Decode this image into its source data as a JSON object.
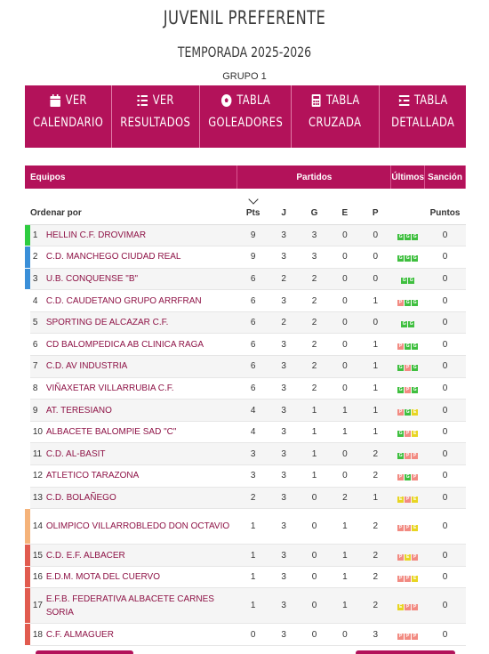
{
  "header": {
    "title": "JUVENIL PREFERENTE",
    "season": "TEMPORADA 2025-2026",
    "group": "GRUPO 1"
  },
  "nav": [
    {
      "icon": "calendar-icon",
      "line1": "VER",
      "line2": "CALENDARIO"
    },
    {
      "icon": "list-icon",
      "line1": "VER",
      "line2": "RESULTADOS"
    },
    {
      "icon": "soccer-ball-icon",
      "line1": "TABLA",
      "line2": "GOLEADORES"
    },
    {
      "icon": "calculator-icon",
      "line1": "TABLA",
      "line2": "CRUZADA"
    },
    {
      "icon": "list-detail-icon",
      "line1": "TABLA",
      "line2": "DETALLADA"
    }
  ],
  "table": {
    "head1": {
      "teams": "Equipos",
      "matches": "Partidos",
      "last": "Últimos",
      "sanction": "Sanción"
    },
    "head2": {
      "order": "Ordenar por",
      "pts": "Pts",
      "j": "J",
      "g": "G",
      "e": "E",
      "p": "P",
      "points": "Puntos"
    },
    "colors": {
      "promotion": "#2ecc40",
      "playoff": "#3a8fd8",
      "warning": "#f5b37a",
      "relegation": "#e15b4f",
      "accent": "#b3125a"
    },
    "rows": [
      {
        "pos": "1",
        "team": "HELLIN C.F. DROVIMAR",
        "pts": "9",
        "j": "3",
        "g": "3",
        "e": "0",
        "p": "0",
        "last": [
          "G",
          "G",
          "G"
        ],
        "sanction": "0",
        "zone": "promotion"
      },
      {
        "pos": "2",
        "team": "C.D. MANCHEGO CIUDAD REAL",
        "pts": "9",
        "j": "3",
        "g": "3",
        "e": "0",
        "p": "0",
        "last": [
          "G",
          "G",
          "G"
        ],
        "sanction": "0",
        "zone": "playoff"
      },
      {
        "pos": "3",
        "team": "U.B. CONQUENSE \"B\"",
        "pts": "6",
        "j": "2",
        "g": "2",
        "e": "0",
        "p": "0",
        "last": [
          "G",
          "G"
        ],
        "sanction": "0",
        "zone": "playoff"
      },
      {
        "pos": "4",
        "team": "C.D. CAUDETANO GRUPO ARRFRAN",
        "pts": "6",
        "j": "3",
        "g": "2",
        "e": "0",
        "p": "1",
        "last": [
          "P",
          "G",
          "G"
        ],
        "sanction": "0",
        "zone": ""
      },
      {
        "pos": "5",
        "team": "SPORTING DE ALCAZAR C.F.",
        "pts": "6",
        "j": "2",
        "g": "2",
        "e": "0",
        "p": "0",
        "last": [
          "G",
          "G"
        ],
        "sanction": "0",
        "zone": ""
      },
      {
        "pos": "6",
        "team": "CD BALOMPEDICA AB CLINICA RAGA",
        "pts": "6",
        "j": "3",
        "g": "2",
        "e": "0",
        "p": "1",
        "last": [
          "P",
          "G",
          "G"
        ],
        "sanction": "0",
        "zone": ""
      },
      {
        "pos": "7",
        "team": "C.D. AV INDUSTRIA",
        "pts": "6",
        "j": "3",
        "g": "2",
        "e": "0",
        "p": "1",
        "last": [
          "G",
          "P",
          "G"
        ],
        "sanction": "0",
        "zone": ""
      },
      {
        "pos": "8",
        "team": "VIÑAXETAR VILLARRUBIA C.F.",
        "pts": "6",
        "j": "3",
        "g": "2",
        "e": "0",
        "p": "1",
        "last": [
          "G",
          "P",
          "G"
        ],
        "sanction": "0",
        "zone": ""
      },
      {
        "pos": "9",
        "team": "AT. TERESIANO",
        "pts": "4",
        "j": "3",
        "g": "1",
        "e": "1",
        "p": "1",
        "last": [
          "P",
          "G",
          "E"
        ],
        "sanction": "0",
        "zone": ""
      },
      {
        "pos": "10",
        "team": "ALBACETE BALOMPIE SAD \"C\"",
        "pts": "4",
        "j": "3",
        "g": "1",
        "e": "1",
        "p": "1",
        "last": [
          "G",
          "P",
          "E"
        ],
        "sanction": "0",
        "zone": ""
      },
      {
        "pos": "11",
        "team": "C.D. AL-BASIT",
        "pts": "3",
        "j": "3",
        "g": "1",
        "e": "0",
        "p": "2",
        "last": [
          "G",
          "P",
          "P"
        ],
        "sanction": "0",
        "zone": ""
      },
      {
        "pos": "12",
        "team": "ATLETICO TARAZONA",
        "pts": "3",
        "j": "3",
        "g": "1",
        "e": "0",
        "p": "2",
        "last": [
          "P",
          "G",
          "P"
        ],
        "sanction": "0",
        "zone": ""
      },
      {
        "pos": "13",
        "team": "C.D. BOLAÑEGO",
        "pts": "2",
        "j": "3",
        "g": "0",
        "e": "2",
        "p": "1",
        "last": [
          "E",
          "P",
          "E"
        ],
        "sanction": "0",
        "zone": ""
      },
      {
        "pos": "14",
        "team": "OLIMPICO VILLARROBLEDO DON OCTAVIO",
        "pts": "1",
        "j": "3",
        "g": "0",
        "e": "1",
        "p": "2",
        "last": [
          "P",
          "P",
          "E"
        ],
        "sanction": "0",
        "zone": "warning"
      },
      {
        "pos": "15",
        "team": "C.D. E.F. ALBACER",
        "pts": "1",
        "j": "3",
        "g": "0",
        "e": "1",
        "p": "2",
        "last": [
          "P",
          "E",
          "P"
        ],
        "sanction": "0",
        "zone": "relegation"
      },
      {
        "pos": "16",
        "team": "E.D.M. MOTA DEL CUERVO",
        "pts": "1",
        "j": "3",
        "g": "0",
        "e": "1",
        "p": "2",
        "last": [
          "P",
          "P",
          "E"
        ],
        "sanction": "0",
        "zone": "relegation"
      },
      {
        "pos": "17",
        "team": "E.F.B. FEDERATIVA ALBACETE CARNES SORIA",
        "pts": "1",
        "j": "3",
        "g": "0",
        "e": "1",
        "p": "2",
        "last": [
          "E",
          "P",
          "P"
        ],
        "sanction": "0",
        "zone": "relegation"
      },
      {
        "pos": "18",
        "team": "C.F. ALMAGUER",
        "pts": "0",
        "j": "3",
        "g": "0",
        "e": "0",
        "p": "3",
        "last": [
          "P",
          "P",
          "P"
        ],
        "sanction": "0",
        "zone": "relegation"
      }
    ]
  }
}
